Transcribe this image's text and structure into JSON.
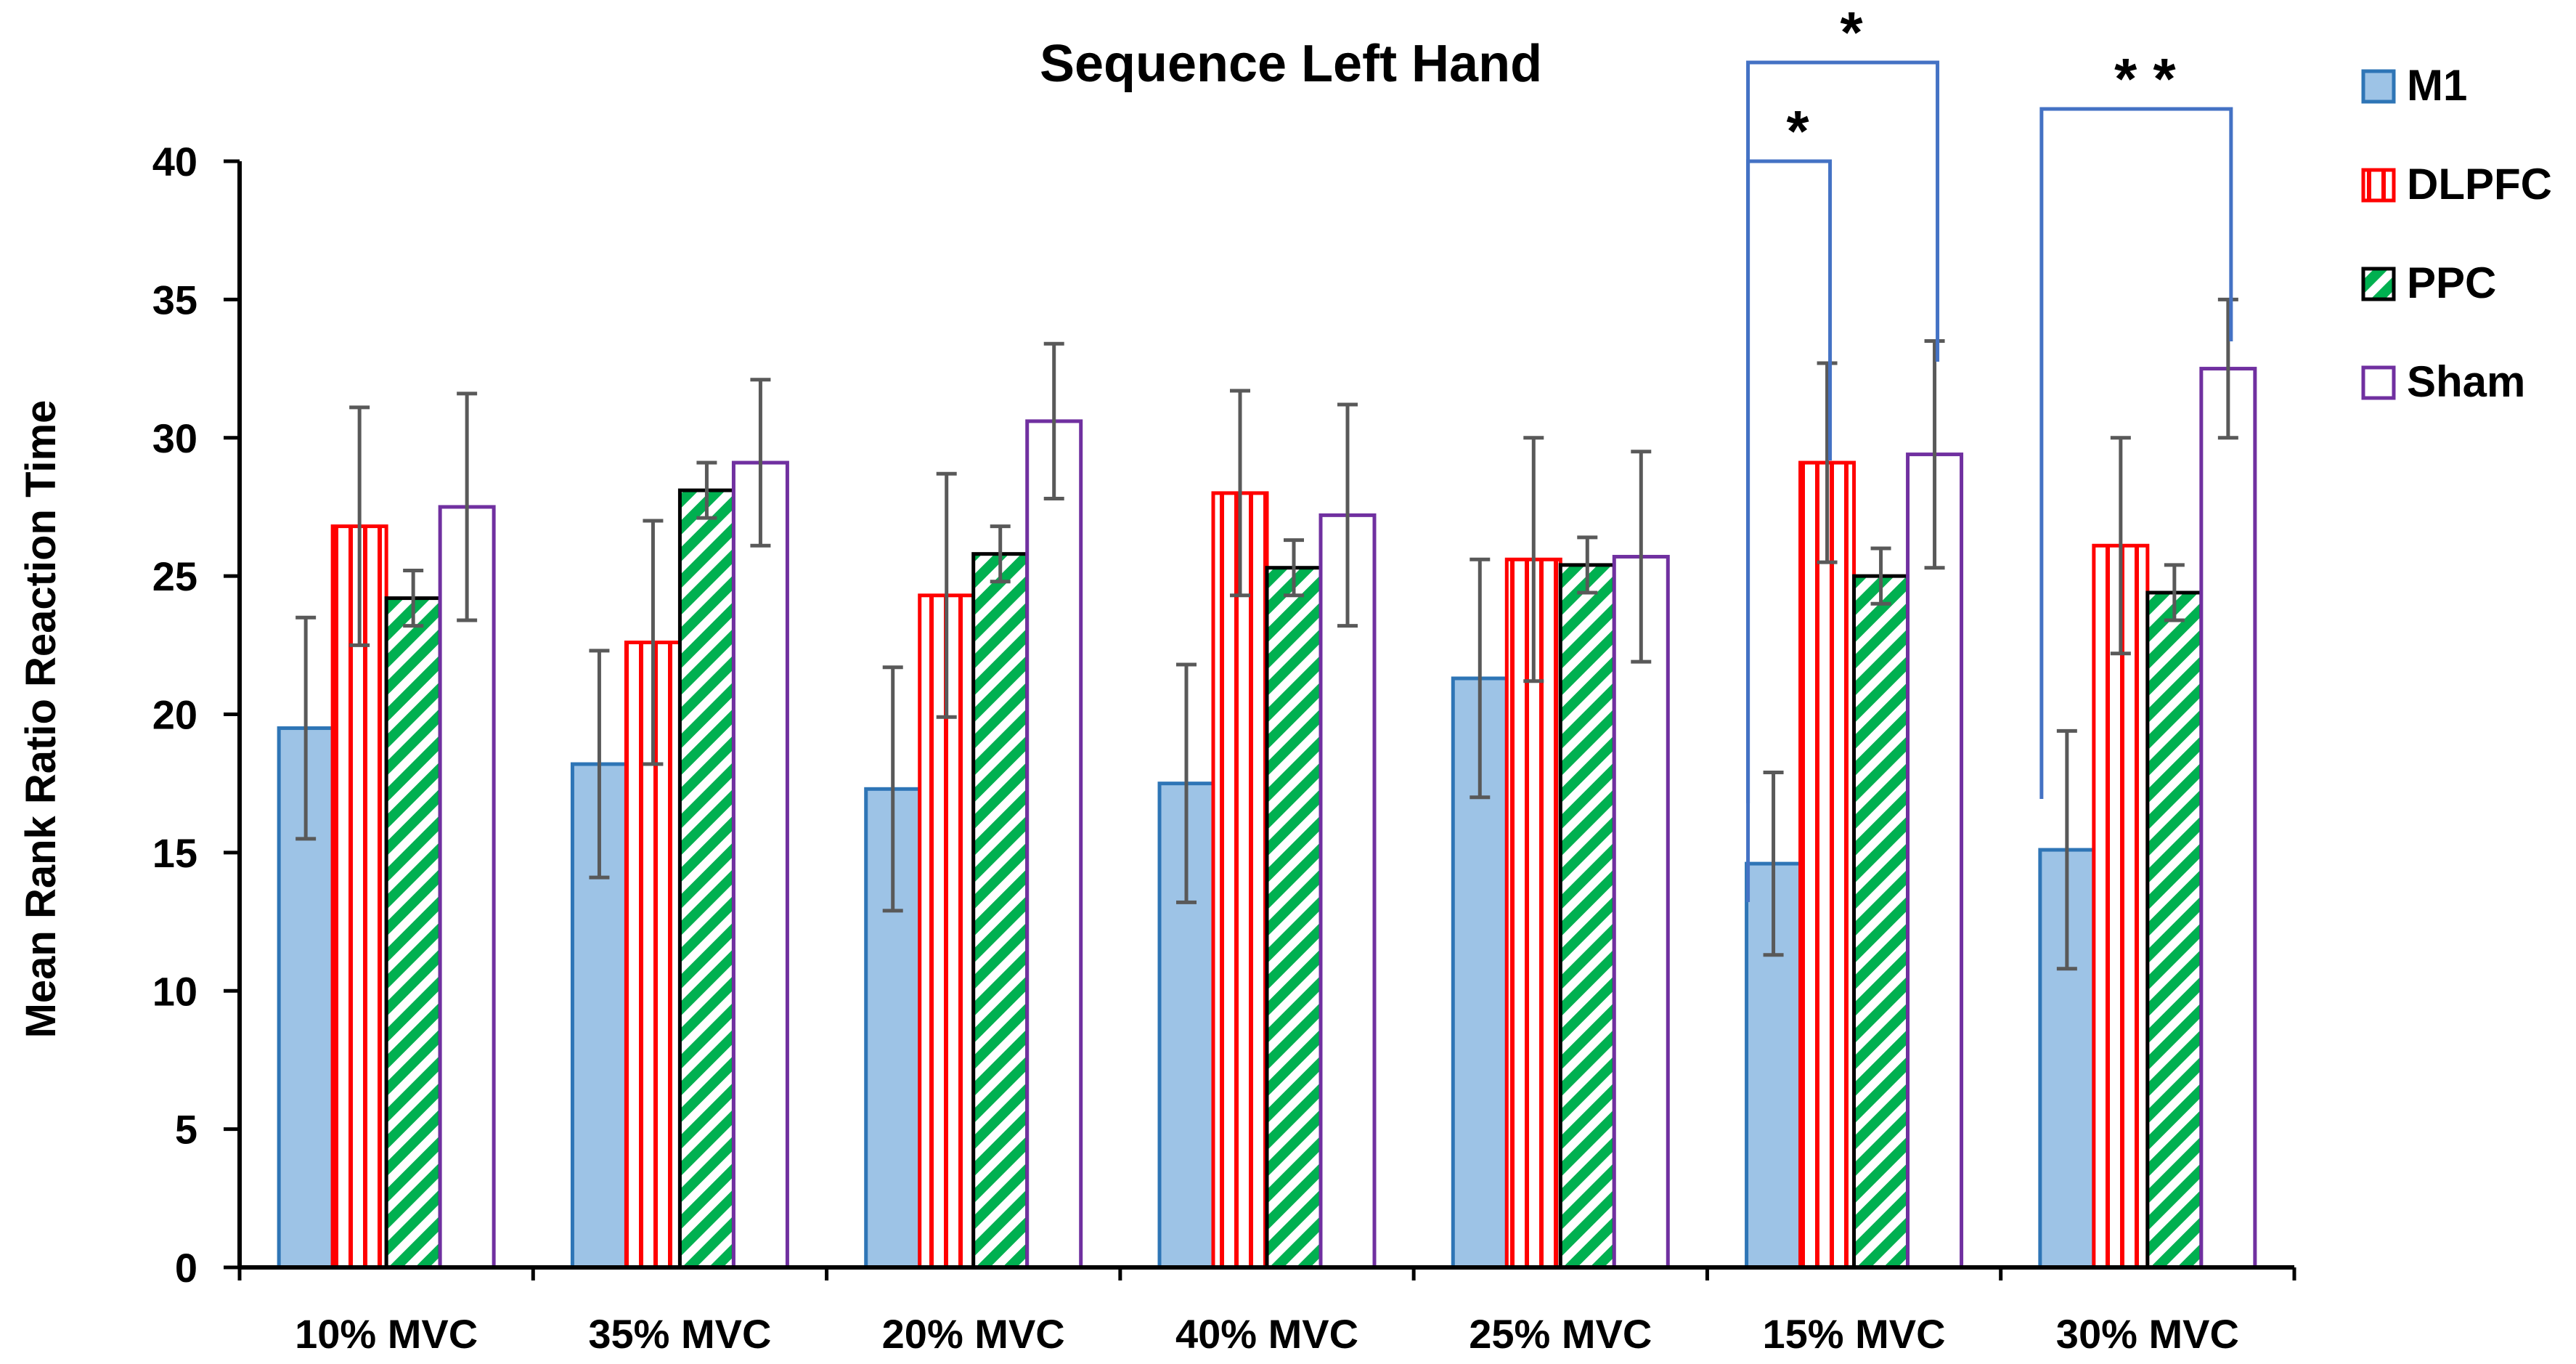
{
  "chart_data": {
    "type": "bar",
    "title": "Sequence Left Hand",
    "xlabel": "",
    "ylabel": "Mean Rank Ratio Reaction Time",
    "ylim": [
      0,
      40
    ],
    "yticks": [
      0,
      5,
      10,
      15,
      20,
      25,
      30,
      35,
      40
    ],
    "grid": false,
    "legend_position": "top-right",
    "categories": [
      "10% MVC",
      "35% MVC",
      "20% MVC",
      "40% MVC",
      "25% MVC",
      "15% MVC",
      "30% MVC"
    ],
    "series": [
      {
        "name": "M1",
        "color": "#9DC3E6",
        "edge": "#2E75B6",
        "pattern": "solid",
        "values": [
          19.5,
          18.2,
          17.3,
          17.5,
          21.3,
          14.6,
          15.1
        ],
        "errors": [
          4.0,
          4.1,
          4.4,
          4.3,
          4.3,
          3.3,
          4.3
        ]
      },
      {
        "name": "DLPFC",
        "color": "#FF0000",
        "edge": "#FF0000",
        "pattern": "vertical-stripes",
        "values": [
          26.8,
          22.6,
          24.3,
          28.0,
          25.6,
          29.1,
          26.1
        ],
        "errors": [
          4.3,
          4.4,
          4.4,
          3.7,
          4.4,
          3.6,
          3.9
        ]
      },
      {
        "name": "PPC",
        "color": "#00B050",
        "edge": "#000000",
        "pattern": "diagonal-stripes",
        "values": [
          24.2,
          28.1,
          25.8,
          25.3,
          25.4,
          25.0,
          24.4
        ],
        "errors": [
          1.0,
          1.0,
          1.0,
          1.0,
          1.0,
          1.0,
          1.0
        ]
      },
      {
        "name": "Sham",
        "color": "#FFFFFF",
        "edge": "#7030A0",
        "pattern": "solid",
        "values": [
          27.5,
          29.1,
          30.6,
          27.2,
          25.7,
          29.4,
          32.5
        ],
        "errors": [
          4.1,
          3.0,
          2.8,
          4.0,
          3.8,
          4.1,
          2.5
        ]
      }
    ],
    "significance": [
      {
        "category": "15% MVC",
        "from_series": "M1",
        "to_series": "DLPFC",
        "label": "*"
      },
      {
        "category": "15% MVC",
        "from_series": "M1",
        "to_series": "Sham",
        "label": "*"
      },
      {
        "category": "30% MVC",
        "from_series": "M1",
        "to_series": "Sham",
        "label": "* *"
      }
    ]
  }
}
